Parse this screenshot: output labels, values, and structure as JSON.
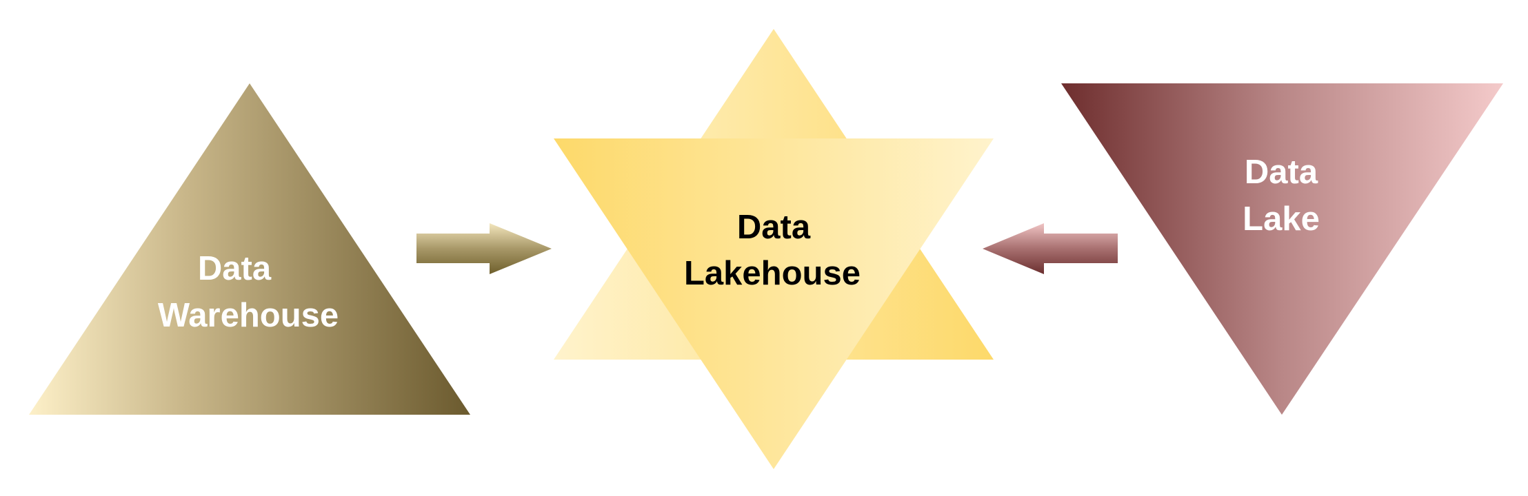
{
  "diagram": {
    "warehouse": {
      "label_line1": "Data",
      "label_line2": "Warehouse",
      "gradient": [
        "#fdf0c8",
        "#6b5a2e"
      ],
      "text_color": "#ffffff"
    },
    "lakehouse": {
      "label_line1": "Data",
      "label_line2": "Lakehouse",
      "gradient_light": "#fff3cc",
      "gradient_strong": "#fdd96a",
      "text_color": "#000000"
    },
    "lake": {
      "label_line1": "Data",
      "label_line2": "Lake",
      "gradient": [
        "#6e2e2e",
        "#f4caca"
      ],
      "text_color": "#ffffff"
    },
    "arrow_left": {
      "direction": "right",
      "gradient": [
        "#f3e6bd",
        "#6e5f2c"
      ]
    },
    "arrow_right": {
      "direction": "left",
      "gradient": [
        "#f0c4c4",
        "#6b2f2f"
      ]
    }
  }
}
